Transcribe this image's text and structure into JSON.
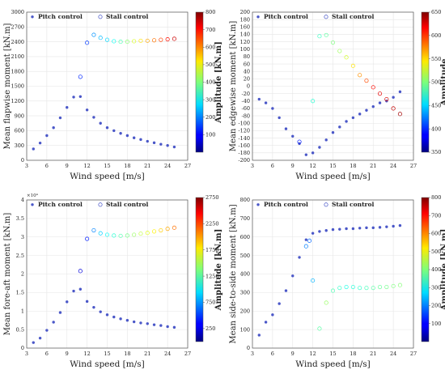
{
  "chart_data": [
    {
      "type": "scatter",
      "xlabel": "Wind speed [m/s]",
      "ylabel": "Mean flapwise moment [kN.m]",
      "xlim": [
        3,
        27
      ],
      "ylim": [
        0,
        3000
      ],
      "xticks": [
        "3",
        "6",
        "9",
        "12",
        "15",
        "18",
        "21",
        "24",
        "27"
      ],
      "yticks": [
        "0",
        "300",
        "600",
        "900",
        "1200",
        "1500",
        "1800",
        "2100",
        "2400",
        "2700",
        "3000"
      ],
      "grid": true,
      "legend": "top-left",
      "series": [
        {
          "name": "Pitch control",
          "marker": "filled-dot",
          "color": "#4a57c8",
          "x": [
            4,
            5,
            6,
            7,
            8,
            9,
            10,
            11,
            12,
            13,
            14,
            15,
            16,
            17,
            18,
            19,
            20,
            21,
            22,
            23,
            24,
            25
          ],
          "y": [
            230,
            350,
            500,
            660,
            860,
            1070,
            1280,
            1290,
            1020,
            870,
            750,
            660,
            600,
            545,
            500,
            455,
            420,
            385,
            355,
            325,
            300,
            270
          ]
        },
        {
          "name": "Stall control",
          "marker": "open-circle",
          "x": [
            11,
            12,
            13,
            14,
            15,
            16,
            17,
            18,
            19,
            20,
            21,
            22,
            23,
            24,
            25
          ],
          "y": [
            1690,
            2380,
            2540,
            2480,
            2440,
            2410,
            2400,
            2400,
            2410,
            2420,
            2420,
            2430,
            2440,
            2450,
            2460
          ],
          "amplitude": [
            130,
            145,
            215,
            245,
            270,
            310,
            360,
            410,
            470,
            520,
            570,
            610,
            650,
            690,
            740
          ]
        }
      ],
      "colorbar": {
        "label": "Amplitude [kN.m]",
        "ticks": [
          "100",
          "200",
          "300",
          "400",
          "500",
          "600",
          "700",
          "800"
        ],
        "range": [
          0,
          800
        ]
      }
    },
    {
      "type": "scatter",
      "xlabel": "Wind speed [m/s]",
      "ylabel": "Mean edgewise moment [kN.m]",
      "xlim": [
        3,
        27
      ],
      "ylim": [
        -200,
        200
      ],
      "xticks": [
        "3",
        "6",
        "9",
        "12",
        "15",
        "18",
        "21",
        "24",
        "27"
      ],
      "yticks": [
        "-200",
        "-180",
        "-160",
        "-140",
        "-120",
        "-100",
        "-80",
        "-60",
        "-40",
        "-20",
        "0",
        "20",
        "40",
        "60",
        "80",
        "100",
        "120",
        "140",
        "160",
        "180",
        "200"
      ],
      "grid": true,
      "legend": "top-left",
      "series": [
        {
          "name": "Pitch control",
          "marker": "filled-dot",
          "color": "#4a57c8",
          "x": [
            4,
            5,
            6,
            7,
            8,
            9,
            10,
            11,
            12,
            13,
            14,
            15,
            16,
            17,
            18,
            19,
            20,
            21,
            22,
            23,
            24,
            25
          ],
          "y": [
            -35,
            -45,
            -60,
            -85,
            -115,
            -135,
            -155,
            -185,
            -180,
            -165,
            -145,
            -125,
            -110,
            -95,
            -85,
            -75,
            -65,
            -55,
            -45,
            -40,
            -30,
            -15
          ]
        },
        {
          "name": "Stall control",
          "marker": "open-circle",
          "x": [
            10,
            12,
            13,
            14,
            15,
            16,
            17,
            18,
            19,
            20,
            21,
            22,
            23,
            24,
            25
          ],
          "y": [
            -150,
            -40,
            135,
            138,
            118,
            95,
            78,
            55,
            30,
            15,
            -3,
            -20,
            -35,
            -60,
            -75
          ],
          "amplitude": [
            395,
            475,
            480,
            490,
            500,
            510,
            525,
            545,
            570,
            590,
            610,
            620,
            625,
            630,
            640
          ]
        }
      ],
      "colorbar": {
        "label": "Amplitude",
        "ticks": [
          "350",
          "400",
          "450",
          "500",
          "550",
          "600",
          "650"
        ],
        "range": [
          350,
          650
        ]
      }
    },
    {
      "type": "scatter",
      "xlabel": "Wind speed [m/s]",
      "ylabel": "Mean fore-aft moment [kN.m]",
      "multiplier": "×10⁴",
      "xlim": [
        3,
        27
      ],
      "ylim": [
        0,
        4
      ],
      "xticks": [
        "3",
        "6",
        "9",
        "12",
        "15",
        "18",
        "21",
        "24",
        "27"
      ],
      "yticks": [
        "0",
        "0.5",
        "1",
        "1.5",
        "2",
        "2.5",
        "3",
        "3.5",
        "4"
      ],
      "grid": true,
      "legend": "top-left",
      "series": [
        {
          "name": "Pitch control",
          "marker": "filled-dot",
          "color": "#4a57c8",
          "x": [
            4,
            5,
            6,
            7,
            8,
            9,
            10,
            11,
            12,
            13,
            14,
            15,
            16,
            17,
            18,
            19,
            20,
            21,
            22,
            23,
            24,
            25
          ],
          "y": [
            0.15,
            0.27,
            0.48,
            0.7,
            0.96,
            1.25,
            1.54,
            1.59,
            1.26,
            1.1,
            0.98,
            0.9,
            0.84,
            0.79,
            0.75,
            0.71,
            0.68,
            0.66,
            0.63,
            0.61,
            0.58,
            0.56
          ]
        },
        {
          "name": "Stall control",
          "marker": "open-circle",
          "x": [
            11,
            12,
            13,
            14,
            15,
            16,
            17,
            18,
            19,
            20,
            21,
            22,
            23,
            24,
            25
          ],
          "y": [
            2.08,
            2.95,
            3.18,
            3.1,
            3.06,
            3.04,
            3.03,
            3.04,
            3.06,
            3.09,
            3.11,
            3.15,
            3.18,
            3.22,
            3.25
          ],
          "amplitude": [
            250,
            420,
            700,
            900,
            1050,
            1150,
            1250,
            1350,
            1450,
            1550,
            1650,
            1750,
            1850,
            1950,
            2100
          ]
        }
      ],
      "colorbar": {
        "label": "Amplitude [kN.m]",
        "ticks": [
          "250",
          "750",
          "1250",
          "1750",
          "2250",
          "2750"
        ],
        "range": [
          0,
          2750
        ]
      }
    },
    {
      "type": "scatter",
      "xlabel": "Wind speed [m/s]",
      "ylabel": "Mean side-to-side moment [kN.m]",
      "xlim": [
        3,
        27
      ],
      "ylim": [
        0,
        800
      ],
      "xticks": [
        "3",
        "6",
        "9",
        "12",
        "15",
        "18",
        "21",
        "24",
        "27"
      ],
      "yticks": [
        "0",
        "100",
        "200",
        "300",
        "400",
        "500",
        "600",
        "700",
        "800"
      ],
      "grid": true,
      "legend": "top-left",
      "series": [
        {
          "name": "Pitch control",
          "marker": "filled-dot",
          "color": "#4a57c8",
          "x": [
            4,
            5,
            6,
            7,
            8,
            9,
            10,
            11,
            12,
            13,
            14,
            15,
            16,
            17,
            18,
            19,
            20,
            21,
            22,
            23,
            24,
            25
          ],
          "y": [
            70,
            140,
            180,
            240,
            310,
            390,
            490,
            585,
            620,
            630,
            635,
            640,
            642,
            645,
            645,
            648,
            650,
            650,
            652,
            655,
            658,
            662
          ]
        },
        {
          "name": "Stall control",
          "marker": "open-circle",
          "x": [
            11,
            11.5,
            12,
            13,
            14,
            15,
            16,
            17,
            18,
            19,
            20,
            21,
            22,
            23,
            24,
            25
          ],
          "y": [
            550,
            580,
            365,
            105,
            245,
            310,
            325,
            330,
            330,
            325,
            325,
            325,
            330,
            330,
            335,
            340
          ],
          "amplitude": [
            200,
            180,
            240,
            370,
            420,
            360,
            340,
            320,
            330,
            340,
            355,
            370,
            380,
            390,
            400,
            405
          ]
        }
      ],
      "colorbar": {
        "label": "Amplitude [kN.m]",
        "ticks": [
          "100",
          "200",
          "300",
          "400",
          "500",
          "600",
          "700",
          "800"
        ],
        "range": [
          0,
          800
        ]
      }
    }
  ]
}
